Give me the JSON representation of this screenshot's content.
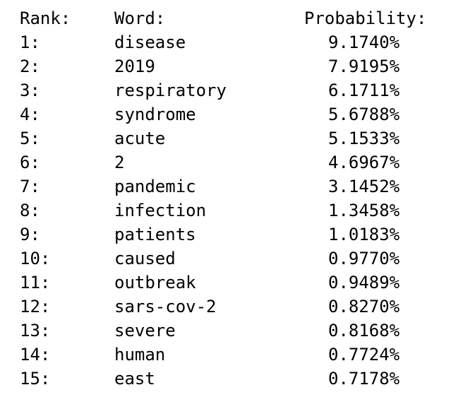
{
  "headers": {
    "rank": "Rank:",
    "word": "Word:",
    "probability": "Probability:"
  },
  "rows": [
    {
      "rank": "1:",
      "word": "disease",
      "probability": "9.1740%"
    },
    {
      "rank": "2:",
      "word": "2019",
      "probability": "7.9195%"
    },
    {
      "rank": "3:",
      "word": "respiratory",
      "probability": "6.1711%"
    },
    {
      "rank": "4:",
      "word": "syndrome",
      "probability": "5.6788%"
    },
    {
      "rank": "5:",
      "word": "acute",
      "probability": "5.1533%"
    },
    {
      "rank": "6:",
      "word": "2",
      "probability": "4.6967%"
    },
    {
      "rank": "7:",
      "word": "pandemic",
      "probability": "3.1452%"
    },
    {
      "rank": "8:",
      "word": "infection",
      "probability": "1.3458%"
    },
    {
      "rank": "9:",
      "word": "patients",
      "probability": "1.0183%"
    },
    {
      "rank": "10:",
      "word": "caused",
      "probability": "0.9770%"
    },
    {
      "rank": "11:",
      "word": "outbreak",
      "probability": "0.9489%"
    },
    {
      "rank": "12:",
      "word": "sars-cov-2",
      "probability": "0.8270%"
    },
    {
      "rank": "13:",
      "word": "severe",
      "probability": "0.8168%"
    },
    {
      "rank": "14:",
      "word": "human",
      "probability": "0.7724%"
    },
    {
      "rank": "15:",
      "word": "east",
      "probability": "0.7178%"
    }
  ]
}
